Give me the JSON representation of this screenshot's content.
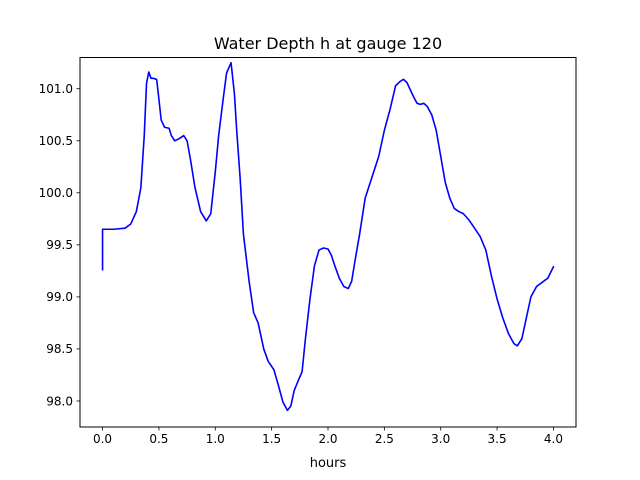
{
  "chart_data": {
    "type": "line",
    "title": "Water Depth h at gauge 120",
    "xlabel": "hours",
    "ylabel": "",
    "xlim": [
      -0.2,
      4.2
    ],
    "ylim": [
      97.75,
      101.3
    ],
    "xticks": [
      {
        "value": 0.0,
        "label": "0.0"
      },
      {
        "value": 0.5,
        "label": "0.5"
      },
      {
        "value": 1.0,
        "label": "1.0"
      },
      {
        "value": 1.5,
        "label": "1.5"
      },
      {
        "value": 2.0,
        "label": "2.0"
      },
      {
        "value": 2.5,
        "label": "2.5"
      },
      {
        "value": 3.0,
        "label": "3.0"
      },
      {
        "value": 3.5,
        "label": "3.5"
      },
      {
        "value": 4.0,
        "label": "4.0"
      }
    ],
    "yticks": [
      {
        "value": 98.0,
        "label": "98.0"
      },
      {
        "value": 98.5,
        "label": "98.5"
      },
      {
        "value": 99.0,
        "label": "99.0"
      },
      {
        "value": 99.5,
        "label": "99.5"
      },
      {
        "value": 100.0,
        "label": "100.0"
      },
      {
        "value": 100.5,
        "label": "100.5"
      },
      {
        "value": 101.0,
        "label": "101.0"
      }
    ],
    "grid": false,
    "series": [
      {
        "color": "#0000ff",
        "x": [
          0.0,
          0.0,
          0.1,
          0.2,
          0.25,
          0.3,
          0.34,
          0.37,
          0.39,
          0.41,
          0.43,
          0.45,
          0.48,
          0.5,
          0.52,
          0.55,
          0.59,
          0.61,
          0.64,
          0.68,
          0.72,
          0.75,
          0.78,
          0.82,
          0.87,
          0.92,
          0.96,
          1.0,
          1.03,
          1.07,
          1.1,
          1.14,
          1.17,
          1.19,
          1.22,
          1.25,
          1.3,
          1.34,
          1.38,
          1.43,
          1.47,
          1.52,
          1.56,
          1.6,
          1.64,
          1.67,
          1.7,
          1.73,
          1.77,
          1.8,
          1.84,
          1.88,
          1.92,
          1.96,
          2.0,
          2.03,
          2.06,
          2.1,
          2.14,
          2.18,
          2.21,
          2.24,
          2.28,
          2.33,
          2.39,
          2.45,
          2.5,
          2.55,
          2.6,
          2.64,
          2.67,
          2.7,
          2.73,
          2.76,
          2.79,
          2.82,
          2.85,
          2.88,
          2.92,
          2.96,
          3.0,
          3.04,
          3.08,
          3.12,
          3.16,
          3.2,
          3.25,
          3.3,
          3.35,
          3.4,
          3.45,
          3.5,
          3.55,
          3.6,
          3.65,
          3.68,
          3.72,
          3.76,
          3.8,
          3.85,
          3.9,
          3.95,
          4.0
        ],
        "y": [
          99.26,
          99.65,
          99.65,
          99.66,
          99.7,
          99.82,
          100.05,
          100.55,
          101.05,
          101.16,
          101.1,
          101.1,
          101.09,
          100.9,
          100.7,
          100.63,
          100.62,
          100.55,
          100.5,
          100.52,
          100.55,
          100.5,
          100.32,
          100.05,
          99.82,
          99.73,
          99.8,
          100.2,
          100.55,
          100.9,
          101.15,
          101.25,
          100.95,
          100.6,
          100.15,
          99.6,
          99.15,
          98.85,
          98.75,
          98.5,
          98.38,
          98.3,
          98.15,
          97.99,
          97.91,
          97.95,
          98.1,
          98.18,
          98.28,
          98.6,
          98.98,
          99.3,
          99.45,
          99.47,
          99.46,
          99.4,
          99.3,
          99.18,
          99.1,
          99.08,
          99.15,
          99.35,
          99.6,
          99.95,
          100.15,
          100.35,
          100.6,
          100.8,
          101.03,
          101.07,
          101.09,
          101.06,
          100.99,
          100.92,
          100.86,
          100.85,
          100.86,
          100.83,
          100.75,
          100.6,
          100.35,
          100.1,
          99.95,
          99.85,
          99.82,
          99.8,
          99.74,
          99.66,
          99.58,
          99.45,
          99.2,
          98.98,
          98.8,
          98.65,
          98.55,
          98.53,
          98.6,
          98.8,
          99.0,
          99.1,
          99.14,
          99.18,
          99.29
        ]
      }
    ]
  }
}
